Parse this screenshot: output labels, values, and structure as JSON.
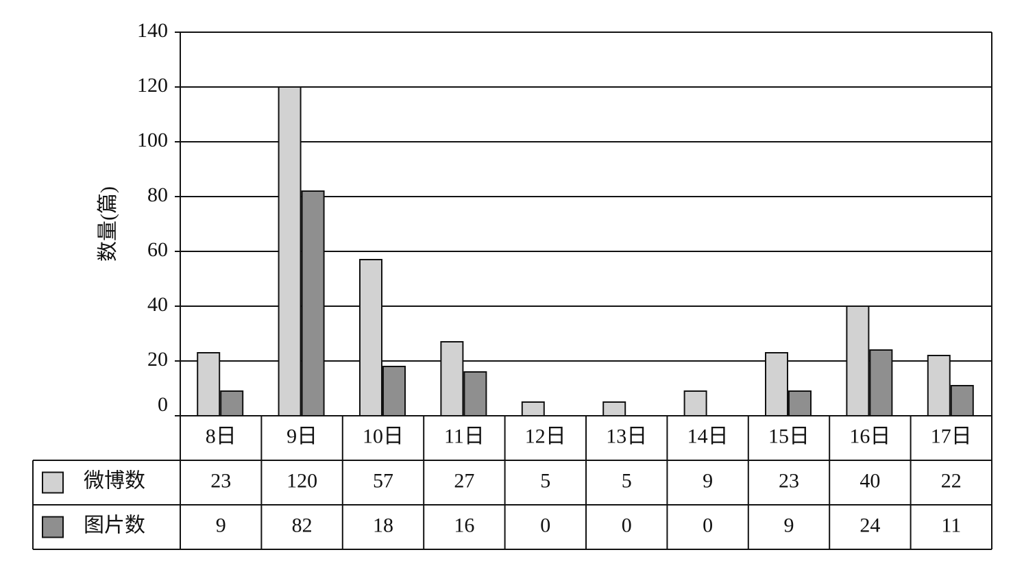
{
  "chart_data": {
    "type": "bar",
    "y_label": "数量(篇)",
    "categories": [
      "8日",
      "9日",
      "10日",
      "11日",
      "12日",
      "13日",
      "14日",
      "15日",
      "16日",
      "17日"
    ],
    "series": [
      {
        "name": "微博数",
        "color": "#d2d2d2",
        "values": [
          23,
          120,
          57,
          27,
          5,
          5,
          9,
          23,
          40,
          22
        ]
      },
      {
        "name": "图片数",
        "color": "#8f8f8f",
        "values": [
          9,
          82,
          18,
          16,
          0,
          0,
          0,
          9,
          24,
          11
        ]
      }
    ],
    "ylim": [
      0,
      140
    ],
    "yticks": [
      0,
      20,
      40,
      60,
      80,
      100,
      120,
      140
    ],
    "grid": true
  }
}
